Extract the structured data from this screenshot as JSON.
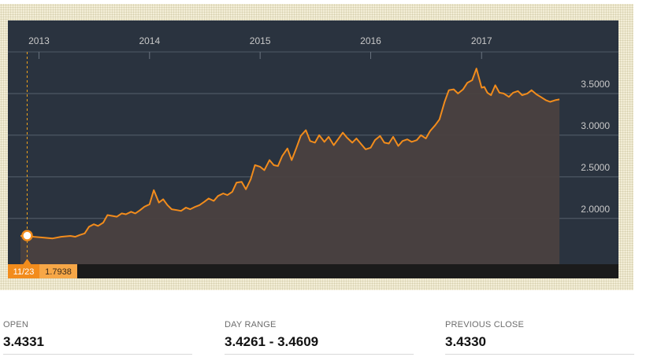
{
  "chart_data": {
    "type": "area",
    "x_tick_labels": [
      "2013",
      "2014",
      "2015",
      "2016",
      "2017"
    ],
    "y_tick_labels": [
      "3.5000",
      "3.0000",
      "2.5000",
      "2.0000"
    ],
    "x_ticks": [
      "2013-01-01",
      "2014-01-01",
      "2015-01-01",
      "2016-01-01",
      "2017-01-01"
    ],
    "y_ticks": [
      3.5,
      3.0,
      2.5,
      2.0
    ],
    "xlim": [
      "2012-11-01",
      "2017-09-20"
    ],
    "ylim": [
      1.45,
      4.0
    ],
    "grid": true,
    "colors": {
      "line": "#f28c1c",
      "area": "#4a4140",
      "panel": "#2a333f",
      "footer": "#1b1b1b",
      "crosshair": "#f2a51c",
      "text": "#c9c9c9"
    },
    "series": [
      {
        "x": [
          "2012-11-01",
          "2012-11-23",
          "2012-12-15",
          "2013-01-15",
          "2013-02-15",
          "2013-03-15",
          "2013-04-15",
          "2013-05-01",
          "2013-05-15",
          "2013-06-01",
          "2013-06-15",
          "2013-07-01",
          "2013-07-15",
          "2013-08-01",
          "2013-08-15",
          "2013-09-01",
          "2013-09-15",
          "2013-10-01",
          "2013-10-15",
          "2013-11-01",
          "2013-11-15",
          "2013-12-01",
          "2013-12-15",
          "2014-01-01",
          "2014-01-15",
          "2014-02-01",
          "2014-02-15",
          "2014-03-01",
          "2014-03-15",
          "2014-04-01",
          "2014-04-15",
          "2014-05-01",
          "2014-05-15",
          "2014-06-01",
          "2014-06-15",
          "2014-07-01",
          "2014-07-15",
          "2014-08-01",
          "2014-08-15",
          "2014-09-01",
          "2014-09-15",
          "2014-10-01",
          "2014-10-15",
          "2014-11-01",
          "2014-11-15",
          "2014-12-01",
          "2014-12-15",
          "2015-01-01",
          "2015-01-15",
          "2015-02-01",
          "2015-02-15",
          "2015-03-01",
          "2015-03-15",
          "2015-04-01",
          "2015-04-15",
          "2015-05-01",
          "2015-05-15",
          "2015-06-01",
          "2015-06-15",
          "2015-07-01",
          "2015-07-15",
          "2015-08-01",
          "2015-08-15",
          "2015-09-01",
          "2015-09-15",
          "2015-10-01",
          "2015-10-15",
          "2015-11-01",
          "2015-11-15",
          "2015-12-01",
          "2015-12-15",
          "2016-01-01",
          "2016-01-15",
          "2016-02-01",
          "2016-02-15",
          "2016-03-01",
          "2016-03-15",
          "2016-04-01",
          "2016-04-15",
          "2016-05-01",
          "2016-05-15",
          "2016-06-01",
          "2016-06-15",
          "2016-07-01",
          "2016-07-15",
          "2016-08-01",
          "2016-08-15",
          "2016-09-01",
          "2016-09-15",
          "2016-10-01",
          "2016-10-15",
          "2016-11-01",
          "2016-11-15",
          "2016-12-01",
          "2016-12-15",
          "2017-01-01",
          "2017-01-10",
          "2017-01-20",
          "2017-02-01",
          "2017-02-15",
          "2017-03-01",
          "2017-03-15",
          "2017-04-01",
          "2017-04-15",
          "2017-05-01",
          "2017-05-15",
          "2017-06-01",
          "2017-06-15",
          "2017-07-01",
          "2017-07-15",
          "2017-08-01",
          "2017-08-15",
          "2017-09-01",
          "2017-09-15"
        ],
        "y": [
          1.79,
          1.7938,
          1.78,
          1.77,
          1.76,
          1.78,
          1.79,
          1.78,
          1.8,
          1.82,
          1.9,
          1.93,
          1.91,
          1.95,
          2.04,
          2.03,
          2.02,
          2.06,
          2.05,
          2.08,
          2.06,
          2.1,
          2.14,
          2.17,
          2.34,
          2.19,
          2.23,
          2.16,
          2.11,
          2.1,
          2.09,
          2.13,
          2.11,
          2.14,
          2.16,
          2.2,
          2.24,
          2.21,
          2.27,
          2.3,
          2.28,
          2.32,
          2.43,
          2.44,
          2.35,
          2.47,
          2.64,
          2.62,
          2.58,
          2.7,
          2.64,
          2.63,
          2.75,
          2.84,
          2.7,
          2.85,
          2.99,
          3.06,
          2.93,
          2.91,
          3.0,
          2.92,
          2.98,
          2.88,
          2.95,
          3.03,
          2.97,
          2.91,
          2.96,
          2.89,
          2.83,
          2.85,
          2.94,
          2.99,
          2.91,
          2.9,
          2.98,
          2.87,
          2.93,
          2.95,
          2.92,
          2.94,
          3.0,
          2.96,
          3.05,
          3.12,
          3.19,
          3.4,
          3.54,
          3.55,
          3.5,
          3.55,
          3.63,
          3.66,
          3.8,
          3.57,
          3.58,
          3.51,
          3.48,
          3.6,
          3.51,
          3.5,
          3.46,
          3.51,
          3.53,
          3.48,
          3.5,
          3.54,
          3.49,
          3.46,
          3.42,
          3.4,
          3.42,
          3.43
        ]
      }
    ],
    "cursor": {
      "x": "2012-11-23",
      "y": 1.7938
    },
    "tooltip": {
      "date_label": "11/23",
      "value_label": "1.7938"
    }
  },
  "stats": [
    {
      "label": "OPEN",
      "value": "3.4331"
    },
    {
      "label": "DAY RANGE",
      "value": "3.4261 - 3.4609"
    },
    {
      "label": "PREVIOUS CLOSE",
      "value": "3.4330"
    }
  ]
}
